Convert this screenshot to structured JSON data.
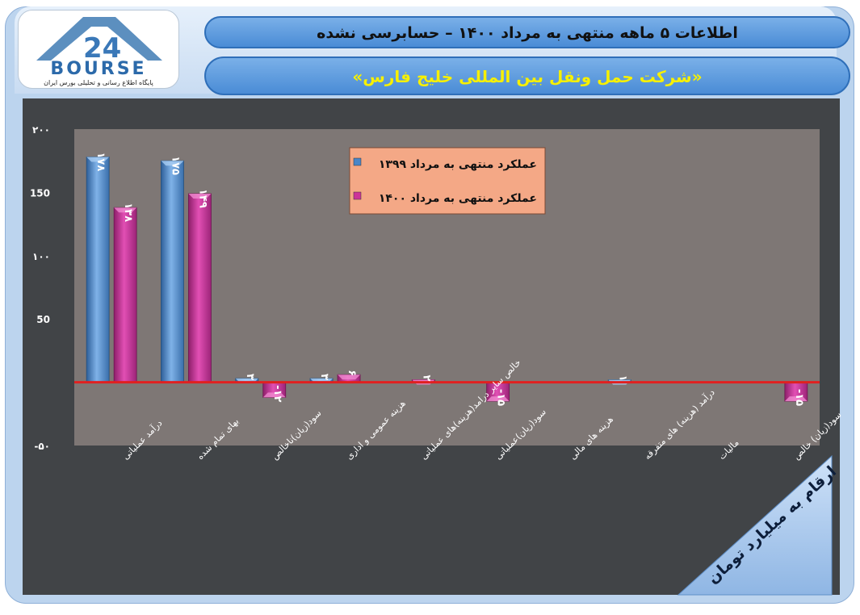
{
  "header": {
    "title": "اطلاعات ۵ ماهه منتهی به مرداد ۱۴۰۰ – حسابرسی نشده",
    "subtitle": "«شرکت حمل ونقل بین المللی خلیج فارس»"
  },
  "logo": {
    "wordmark": "BOURSE",
    "tagline": "پایگاه اطلاع رسانی و تحلیلی بورس ایران"
  },
  "unit_note": "ارقام به میلیارد تومان",
  "colors": {
    "series1": "#4a86c8",
    "series2": "#cc3399",
    "zero_line": "#e02020",
    "plot_bg": "#7e7775",
    "legend_bg": "#f4a886"
  },
  "chart_data": {
    "type": "bar",
    "categories": [
      "درآمد عملیاتی",
      "بهای تمام شده",
      "سود(زیان)ناخالص",
      "هزینه عمومی و اداری",
      "خالص سایر درامد(هزینه)های عملیاتی",
      "سود(زیان)عملیاتی",
      "هزینه های مالی",
      "درآمد (هزینه) های متفرقه",
      "مالیات",
      "سود(زیان) خالص"
    ],
    "series": [
      {
        "name": "عملکرد منتهی به مرداد ۱۳۹۹",
        "values": [
          178,
          175,
          3,
          3,
          null,
          null,
          null,
          1,
          null,
          null
        ],
        "labels": [
          "۱۷۸",
          "۱۷۵",
          "۳",
          "۳",
          "",
          "",
          "",
          "۱",
          "",
          ""
        ]
      },
      {
        "name": "عملکرد منتهی به مرداد ۱۴۰۰",
        "values": [
          138,
          149,
          -12,
          6,
          2,
          -15,
          null,
          null,
          null,
          -15
        ],
        "labels": [
          "۱۳۸",
          "۱۴۹",
          "-۱۲",
          "۶",
          "۲",
          "-۱۵",
          "",
          "",
          "",
          "-۱۵"
        ]
      }
    ],
    "yticks": [
      "۲۰۰",
      "150",
      "۱۰۰",
      "50",
      "-۵۰"
    ],
    "ytick_values": [
      200,
      150,
      100,
      50,
      -50
    ],
    "ylim": [
      -50,
      200
    ],
    "legend_position": "top-center",
    "grid": false
  }
}
